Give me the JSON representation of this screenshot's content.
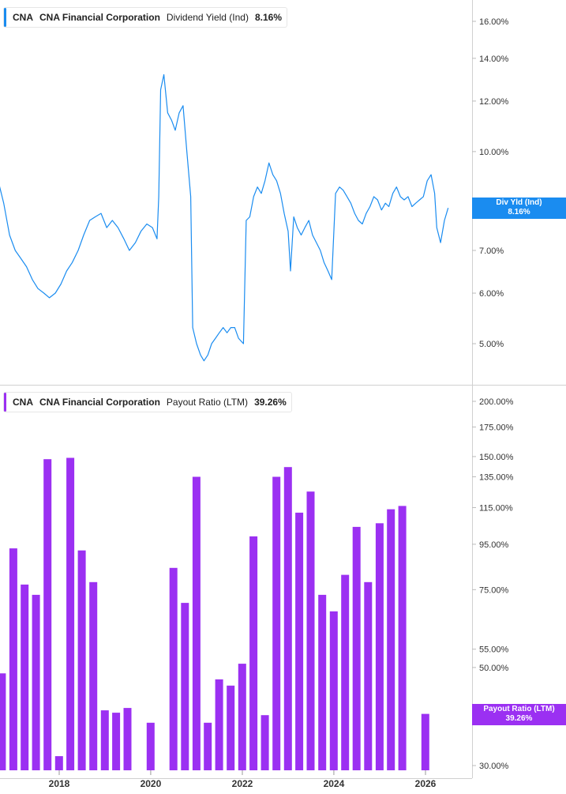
{
  "top_panel": {
    "ticker": "CNA",
    "company": "CNA Financial Corporation",
    "metric": "Dividend Yield (Ind)",
    "value": "8.16%",
    "tag_label": "Div Yld (Ind)",
    "tag_value": "8.16%",
    "color": "#1a8cf0"
  },
  "bottom_panel": {
    "ticker": "CNA",
    "company": "CNA Financial Corporation",
    "metric": "Payout Ratio (LTM)",
    "value": "39.26%",
    "tag_label": "Payout Ratio (LTM)",
    "tag_value": "39.26%",
    "color": "#9b30f2"
  },
  "chart_data": [
    {
      "type": "line",
      "title": "CNA Financial Corporation Dividend Yield (Ind)",
      "series": [
        {
          "name": "Dividend Yield (Ind)",
          "color": "#1a8cf0",
          "x": [
            "2016-09-01",
            "2016-10-15",
            "2016-12-01",
            "2017-01-15",
            "2017-03-01",
            "2017-04-15",
            "2017-06-01",
            "2017-07-15",
            "2017-09-01",
            "2017-10-15",
            "2017-12-01",
            "2018-01-15",
            "2018-03-01",
            "2018-04-15",
            "2018-06-01",
            "2018-07-15",
            "2018-09-01",
            "2018-10-15",
            "2018-12-01",
            "2019-01-15",
            "2019-03-01",
            "2019-04-15",
            "2019-06-01",
            "2019-07-15",
            "2019-09-01",
            "2019-10-15",
            "2019-12-01",
            "2020-01-15",
            "2020-02-20",
            "2020-03-05",
            "2020-03-20",
            "2020-04-15",
            "2020-05-15",
            "2020-06-15",
            "2020-07-15",
            "2020-08-15",
            "2020-09-15",
            "2020-10-15",
            "2020-11-15",
            "2020-12-01",
            "2021-01-01",
            "2021-02-01",
            "2021-03-01",
            "2021-04-01",
            "2021-05-01",
            "2021-06-01",
            "2021-07-01",
            "2021-08-01",
            "2021-09-01",
            "2021-10-01",
            "2021-11-01",
            "2021-12-01",
            "2022-01-10",
            "2022-02-01",
            "2022-03-01",
            "2022-04-01",
            "2022-05-01",
            "2022-06-01",
            "2022-07-01",
            "2022-08-01",
            "2022-09-01",
            "2022-10-01",
            "2022-11-01",
            "2022-12-01",
            "2023-01-01",
            "2023-01-20",
            "2023-02-15",
            "2023-03-15",
            "2023-04-15",
            "2023-05-15",
            "2023-06-15",
            "2023-07-15",
            "2023-08-15",
            "2023-09-15",
            "2023-10-15",
            "2023-11-15",
            "2023-12-15",
            "2024-01-15",
            "2024-02-15",
            "2024-03-15",
            "2024-04-15",
            "2024-05-15",
            "2024-06-15",
            "2024-07-15",
            "2024-08-15",
            "2024-09-15",
            "2024-10-15",
            "2024-11-15",
            "2024-12-15",
            "2025-01-15",
            "2025-02-15",
            "2025-03-15",
            "2025-04-15",
            "2025-05-15",
            "2025-06-15",
            "2025-07-15",
            "2025-08-15",
            "2025-09-15",
            "2025-10-15",
            "2025-11-15",
            "2025-12-15",
            "2026-01-15",
            "2026-02-15",
            "2026-03-15",
            "2026-04-01",
            "2026-05-01",
            "2026-06-01",
            "2026-07-01"
          ],
          "values": [
            9.0,
            8.3,
            7.4,
            7.0,
            6.8,
            6.6,
            6.3,
            6.1,
            6.0,
            5.9,
            6.0,
            6.2,
            6.5,
            6.7,
            7.0,
            7.4,
            7.8,
            7.9,
            8.0,
            7.6,
            7.8,
            7.6,
            7.3,
            7.0,
            7.2,
            7.5,
            7.7,
            7.6,
            7.3,
            8.5,
            12.5,
            13.2,
            11.5,
            11.2,
            10.8,
            11.5,
            11.8,
            10.0,
            8.5,
            5.3,
            5.0,
            4.8,
            4.7,
            4.8,
            5.0,
            5.1,
            5.2,
            5.3,
            5.2,
            5.3,
            5.3,
            5.1,
            5.0,
            7.8,
            7.9,
            8.5,
            8.8,
            8.6,
            9.0,
            9.6,
            9.2,
            9.0,
            8.6,
            8.0,
            7.5,
            6.5,
            7.9,
            7.6,
            7.4,
            7.6,
            7.8,
            7.4,
            7.2,
            7.0,
            6.7,
            6.5,
            6.3,
            8.6,
            8.8,
            8.7,
            8.5,
            8.3,
            8.0,
            7.8,
            7.7,
            8.0,
            8.2,
            8.5,
            8.4,
            8.1,
            8.3,
            8.2,
            8.6,
            8.8,
            8.5,
            8.4,
            8.5,
            8.2,
            8.3,
            8.4,
            8.5,
            9.0,
            9.2,
            8.6,
            7.6,
            7.2,
            7.8,
            8.16
          ]
        }
      ],
      "ylim": [
        4.5,
        17
      ],
      "yscale": "log",
      "ytick_labels": [
        "5.00%",
        "6.00%",
        "7.00%",
        "8.00%",
        "10.00%",
        "12.00%",
        "14.00%",
        "16.00%"
      ],
      "ytick_values": [
        5,
        6,
        7,
        8,
        10,
        12,
        14,
        16
      ],
      "xtick_labels": [
        "2018",
        "2020",
        "2022",
        "2024",
        "2026"
      ]
    },
    {
      "type": "bar",
      "title": "CNA Financial Corporation Payout Ratio (LTM)",
      "series": [
        {
          "name": "Payout Ratio (LTM)",
          "color": "#9b30f2",
          "x": [
            "2016-10-01",
            "2016-12-31",
            "2017-03-31",
            "2017-06-30",
            "2017-09-30",
            "2017-12-31",
            "2018-03-31",
            "2018-06-30",
            "2018-09-30",
            "2018-12-31",
            "2019-03-31",
            "2019-06-30",
            "2019-09-30",
            "2019-12-31",
            "2020-03-31",
            "2020-06-30",
            "2020-09-30",
            "2020-12-31",
            "2021-03-31",
            "2021-06-30",
            "2021-09-30",
            "2021-12-31",
            "2022-03-31",
            "2022-06-30",
            "2022-09-30",
            "2022-12-31",
            "2023-03-31",
            "2023-06-30",
            "2023-09-30",
            "2023-12-31",
            "2024-03-31",
            "2024-06-30",
            "2024-09-30",
            "2024-12-31",
            "2025-03-31",
            "2025-06-30",
            "2025-09-30",
            "2025-12-31"
          ],
          "values": [
            48.5,
            93.0,
            77.0,
            73.0,
            148.0,
            31.5,
            149.0,
            92.0,
            78.0,
            40.0,
            39.5,
            40.5,
            null,
            37.5,
            null,
            84.0,
            70.0,
            135.0,
            37.5,
            47.0,
            45.5,
            51.0,
            99.0,
            39.0,
            135.0,
            142.0,
            112.0,
            125.0,
            73.0,
            67.0,
            81.0,
            104.0,
            78.0,
            106.0,
            114.0,
            116.0,
            null,
            39.26
          ]
        }
      ],
      "ylim": [
        30,
        210
      ],
      "yscale": "log",
      "ytick_labels": [
        "30.00%",
        "50.00%",
        "55.00%",
        "75.00%",
        "95.00%",
        "115.00%",
        "135.00%",
        "150.00%",
        "175.00%",
        "200.00%"
      ],
      "ytick_values": [
        30,
        50,
        55,
        75,
        95,
        115,
        135,
        150,
        175,
        200
      ],
      "xtick_labels": [
        "2018",
        "2020",
        "2022",
        "2024",
        "2026"
      ]
    }
  ]
}
